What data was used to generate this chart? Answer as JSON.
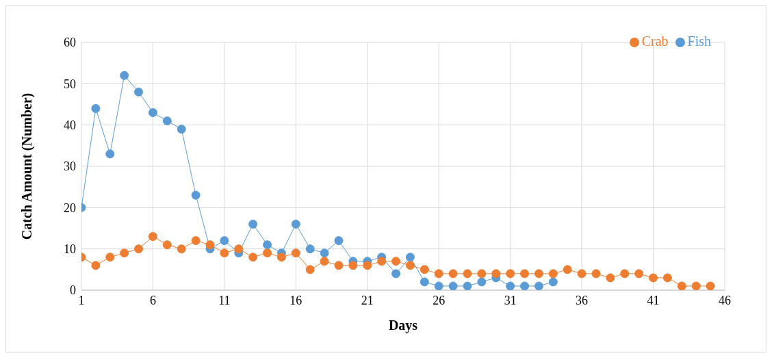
{
  "chart_data": {
    "type": "line",
    "xlabel": "Days",
    "ylabel": "Catch Amount  (Number)",
    "x": [
      1,
      2,
      3,
      4,
      5,
      6,
      7,
      8,
      9,
      10,
      11,
      12,
      13,
      14,
      15,
      16,
      17,
      18,
      19,
      20,
      21,
      22,
      23,
      24,
      25,
      26,
      27,
      28,
      29,
      30,
      31,
      32,
      33,
      34,
      35,
      36,
      37,
      38,
      39,
      40,
      41,
      42,
      43,
      44,
      45
    ],
    "series": [
      {
        "name": "Fish",
        "color": "#5b9bd5",
        "values": [
          20,
          44,
          33,
          52,
          48,
          43,
          41,
          39,
          23,
          10,
          12,
          9,
          16,
          11,
          9,
          16,
          10,
          9,
          12,
          7,
          7,
          8,
          4,
          8,
          2,
          1,
          1,
          1,
          2,
          3,
          1,
          1,
          1,
          2,
          null,
          null,
          null,
          null,
          null,
          null,
          null,
          null,
          null,
          null,
          null
        ]
      },
      {
        "name": "Crab",
        "color": "#ed7d31",
        "values": [
          8,
          6,
          8,
          9,
          10,
          13,
          11,
          10,
          12,
          11,
          9,
          10,
          8,
          9,
          8,
          9,
          5,
          7,
          6,
          6,
          6,
          7,
          7,
          6,
          5,
          4,
          4,
          4,
          4,
          4,
          4,
          4,
          4,
          4,
          5,
          4,
          4,
          3,
          4,
          4,
          3,
          3,
          1,
          1,
          1
        ]
      }
    ],
    "xlim": [
      1,
      46
    ],
    "xticks": [
      1,
      6,
      11,
      16,
      21,
      26,
      31,
      36,
      41,
      46
    ],
    "ylim": [
      0,
      60
    ],
    "yticks": [
      0,
      10,
      20,
      30,
      40,
      50,
      60
    ],
    "grid": true,
    "legend": "top right",
    "marker": "circle",
    "line_style": "solid"
  }
}
